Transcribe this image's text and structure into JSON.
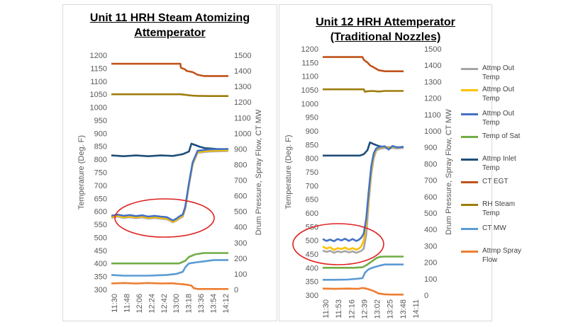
{
  "chart_data": [
    {
      "type": "line",
      "title_line1": "Unit 11 HRH Steam Atomizing",
      "title_line2": "Attemperator",
      "ylabel_left": "Temperature (Deg. F)",
      "ylabel_right": "Drum Pressure, Spray Flow, CT MW",
      "ylim_left": [
        300,
        1200
      ],
      "ylim_right": [
        0,
        1500
      ],
      "ticks_left": [
        "300",
        "350",
        "400",
        "450",
        "500",
        "550",
        "600",
        "650",
        "700",
        "750",
        "800",
        "850",
        "900",
        "950",
        "1000",
        "1050",
        "1100",
        "1150",
        "1200"
      ],
      "ticks_right": [
        "0",
        "100",
        "200",
        "300",
        "400",
        "500",
        "600",
        "700",
        "800",
        "900",
        "1000",
        "1100",
        "1200",
        "1300",
        "1400",
        "1500"
      ],
      "x_ticks": [
        "11:30",
        "11:48",
        "12:06",
        "12:24",
        "12:42",
        "13:00",
        "13:18",
        "13:36",
        "13:54",
        "14:12"
      ],
      "x_range": [
        0,
        9.5
      ],
      "series": [
        {
          "name": "CT EGT",
          "color": "#c0531a",
          "axis": "left",
          "x": [
            0,
            5.6,
            5.65,
            6.0,
            6.1,
            6.6,
            7.0,
            7.5,
            8.2,
            9.5
          ],
          "y": [
            1167,
            1167,
            1152,
            1145,
            1140,
            1135,
            1125,
            1120,
            1120,
            1120
          ]
        },
        {
          "name": "RH Steam Temp",
          "color": "#9e7c0c",
          "axis": "left",
          "x": [
            0,
            2,
            4,
            5.6,
            6.0,
            6.5,
            7.0,
            8.0,
            9.5
          ],
          "y": [
            1050,
            1050,
            1050,
            1050,
            1048,
            1045,
            1044,
            1043,
            1043
          ]
        },
        {
          "name": "Attmp Inlet Temp",
          "color": "#1f4e79",
          "axis": "left",
          "x": [
            0,
            1,
            2,
            3,
            4,
            5,
            5.8,
            6.3,
            6.5,
            6.8,
            7.2,
            7.6,
            8.0,
            8.5,
            9.5
          ],
          "y": [
            815,
            812,
            815,
            812,
            815,
            813,
            820,
            830,
            860,
            855,
            848,
            843,
            842,
            840,
            838
          ]
        },
        {
          "name": "Attmp Out Temp",
          "color": "#a5a5a5",
          "axis": "left",
          "x": [
            0,
            0.5,
            1,
            1.5,
            2,
            2.5,
            3,
            3.5,
            4,
            4.5,
            5,
            5.3,
            5.5,
            5.8,
            6.0,
            6.3,
            6.6,
            7.0,
            7.5,
            8.0,
            9.5
          ],
          "y": [
            575,
            580,
            575,
            578,
            574,
            577,
            572,
            575,
            572,
            570,
            558,
            565,
            572,
            580,
            610,
            700,
            780,
            825,
            828,
            830,
            832
          ]
        },
        {
          "name": "Attmp Out Temp",
          "color": "#ffc000",
          "axis": "left",
          "x": [
            0,
            0.5,
            1,
            1.5,
            2,
            2.5,
            3,
            3.5,
            4,
            4.5,
            5,
            5.3,
            5.5,
            5.8,
            6.0,
            6.3,
            6.6,
            7.0,
            7.5,
            8.0,
            9.5
          ],
          "y": [
            578,
            583,
            578,
            581,
            577,
            580,
            575,
            578,
            575,
            573,
            560,
            568,
            575,
            583,
            613,
            703,
            783,
            828,
            831,
            833,
            835
          ]
        },
        {
          "name": "Attmp Out Temp",
          "color": "#4472c4",
          "axis": "left",
          "x": [
            0,
            0.5,
            1,
            1.5,
            2,
            2.5,
            3,
            3.5,
            4,
            4.5,
            5,
            5.3,
            5.5,
            5.8,
            6.0,
            6.3,
            6.6,
            7.0,
            7.5,
            8.0,
            9.5
          ],
          "y": [
            583,
            588,
            583,
            586,
            582,
            585,
            580,
            583,
            580,
            578,
            565,
            573,
            580,
            588,
            618,
            708,
            788,
            833,
            836,
            838,
            840
          ]
        },
        {
          "name": "Temp of Sat",
          "color": "#70ad47",
          "axis": "left",
          "x": [
            0,
            4,
            5.5,
            6.0,
            6.3,
            6.8,
            7.5,
            9.5
          ],
          "y": [
            400,
            400,
            400,
            410,
            425,
            435,
            440,
            440
          ]
        },
        {
          "name": "CT MW",
          "color": "#5b9bd5",
          "axis": "left",
          "x": [
            0,
            1,
            3,
            4.5,
            5.3,
            5.8,
            6.0,
            6.3,
            7.0,
            7.5,
            8.3,
            9.5
          ],
          "y": [
            356,
            353,
            353,
            356,
            360,
            368,
            385,
            400,
            405,
            408,
            413,
            413
          ]
        },
        {
          "name": "Attmp Spray Flow",
          "color": "#ed7d31",
          "axis": "left",
          "x": [
            0,
            1,
            2,
            3,
            4,
            5,
            5.3,
            5.8,
            6.2,
            6.5,
            6.7,
            7.0,
            9.5
          ],
          "y": [
            323,
            325,
            323,
            325,
            323,
            324,
            322,
            320,
            318,
            315,
            305,
            302,
            302
          ]
        }
      ]
    },
    {
      "type": "line",
      "title_line1": "Unit 12 HRH Attemperator",
      "title_line2": "(Traditional Nozzles)",
      "ylabel_left": "Temperature (Deg. F)",
      "ylabel_right": "Drum Pressure, Spray Flow, CT MW",
      "ylim_left": [
        300,
        1200
      ],
      "ylim_right": [
        0,
        1500
      ],
      "ticks_left": [
        "300",
        "350",
        "400",
        "450",
        "500",
        "550",
        "600",
        "650",
        "700",
        "750",
        "800",
        "850",
        "900",
        "950",
        "1000",
        "1050",
        "1100",
        "1150",
        "1200"
      ],
      "ticks_right": [
        "0",
        "100",
        "200",
        "300",
        "400",
        "500",
        "600",
        "700",
        "800",
        "900",
        "1000",
        "1100",
        "1200",
        "1300",
        "1400",
        "1500"
      ],
      "x_ticks": [
        "11:30",
        "11:53",
        "12:16",
        "12:39",
        "13:02",
        "13:25",
        "13:48",
        "14:11"
      ],
      "x_range": [
        0,
        7.7
      ],
      "series": [
        {
          "name": "CT EGT",
          "color": "#c0531a",
          "axis": "left",
          "x": [
            0,
            3.2,
            3.3,
            3.6,
            3.8,
            4.2,
            4.5,
            5.0,
            6.5
          ],
          "y": [
            1170,
            1170,
            1160,
            1150,
            1140,
            1130,
            1122,
            1118,
            1118
          ]
        },
        {
          "name": "RH Steam Temp",
          "color": "#9e7c0c",
          "axis": "left",
          "x": [
            0,
            3.3,
            3.4,
            3.6,
            4.0,
            4.5,
            5.0,
            6.5
          ],
          "y": [
            1052,
            1052,
            1043,
            1045,
            1046,
            1044,
            1046,
            1046
          ]
        },
        {
          "name": "Attmp Inlet Temp",
          "color": "#1f4e79",
          "axis": "left",
          "x": [
            0,
            1,
            2,
            3,
            3.3,
            3.6,
            3.8,
            4.1,
            4.5,
            5.0,
            6.5
          ],
          "y": [
            810,
            810,
            810,
            810,
            815,
            830,
            858,
            852,
            845,
            840,
            840
          ]
        },
        {
          "name": "Attmp Out Temp",
          "color": "#a5a5a5",
          "axis": "left",
          "x": [
            0,
            0.3,
            0.6,
            0.9,
            1.2,
            1.5,
            1.8,
            2.1,
            2.4,
            2.7,
            2.9,
            3.1,
            3.3,
            3.5,
            3.7,
            3.9,
            4.1,
            4.3,
            4.6,
            5.0,
            5.3,
            5.6,
            6.0,
            6.5
          ],
          "y": [
            463,
            458,
            462,
            455,
            460,
            457,
            461,
            456,
            460,
            455,
            458,
            462,
            470,
            520,
            640,
            740,
            800,
            828,
            835,
            838,
            835,
            838,
            836,
            838
          ]
        },
        {
          "name": "Attmp Out Temp",
          "color": "#ffc000",
          "axis": "left",
          "x": [
            0,
            0.3,
            0.6,
            0.9,
            1.2,
            1.5,
            1.8,
            2.1,
            2.4,
            2.7,
            2.9,
            3.1,
            3.3,
            3.5,
            3.7,
            3.9,
            4.1,
            4.3,
            4.6,
            5.0,
            5.3,
            5.6,
            6.0,
            6.5
          ],
          "y": [
            478,
            470,
            475,
            465,
            472,
            468,
            474,
            466,
            472,
            466,
            470,
            478,
            500,
            560,
            660,
            755,
            810,
            833,
            840,
            842,
            838,
            842,
            840,
            842
          ]
        },
        {
          "name": "Attmp Out Temp",
          "color": "#4472c4",
          "axis": "left",
          "x": [
            0,
            0.3,
            0.6,
            0.9,
            1.2,
            1.5,
            1.8,
            2.1,
            2.4,
            2.7,
            2.9,
            3.1,
            3.3,
            3.5,
            3.7,
            3.9,
            4.1,
            4.3,
            4.6,
            5.0,
            5.3,
            5.6,
            6.0,
            6.5
          ],
          "y": [
            505,
            498,
            503,
            497,
            505,
            500,
            506,
            498,
            505,
            498,
            502,
            510,
            525,
            580,
            680,
            770,
            818,
            836,
            842,
            844,
            832,
            845,
            840,
            842
          ]
        },
        {
          "name": "Temp of Sat",
          "color": "#70ad47",
          "axis": "left",
          "x": [
            0,
            2.5,
            3.2,
            3.6,
            4.0,
            4.3,
            4.6,
            5.0,
            6.5
          ],
          "y": [
            400,
            400,
            402,
            412,
            425,
            435,
            440,
            441,
            441
          ]
        },
        {
          "name": "CT MW",
          "color": "#5b9bd5",
          "axis": "left",
          "x": [
            0,
            1,
            2,
            2.8,
            3.2,
            3.4,
            3.7,
            4.1,
            4.6,
            5.0,
            6.5
          ],
          "y": [
            356,
            356,
            357,
            360,
            362,
            382,
            395,
            402,
            408,
            412,
            412
          ]
        },
        {
          "name": "Attmp Spray Flow",
          "color": "#ed7d31",
          "axis": "left",
          "x": [
            0,
            1,
            2,
            2.8,
            3.2,
            3.5,
            3.8,
            4.1,
            4.5,
            5.0,
            5.5,
            6.5
          ],
          "y": [
            324,
            323,
            324,
            323,
            326,
            324,
            320,
            315,
            306,
            303,
            302,
            302
          ]
        }
      ]
    }
  ],
  "legend": [
    {
      "label": "Attmp Out Temp",
      "color": "#a5a5a5"
    },
    {
      "label": "Attmp Out Temp",
      "color": "#ffc000"
    },
    {
      "label": "Attmp Out Temp",
      "color": "#4472c4"
    },
    {
      "label": "Temp of Sat",
      "color": "#70ad47"
    },
    {
      "label": "Attmp Inlet Temp",
      "color": "#1f4e79"
    },
    {
      "label": "CT EGT",
      "color": "#c0531a"
    },
    {
      "label": "RH Steam Temp",
      "color": "#9e7c0c"
    },
    {
      "label": "CT MW",
      "color": "#5b9bd5"
    },
    {
      "label": "Attmp Spray Flow",
      "color": "#ed7d31"
    }
  ],
  "annotation": {
    "shape": "ellipse",
    "color": "#e02020"
  }
}
